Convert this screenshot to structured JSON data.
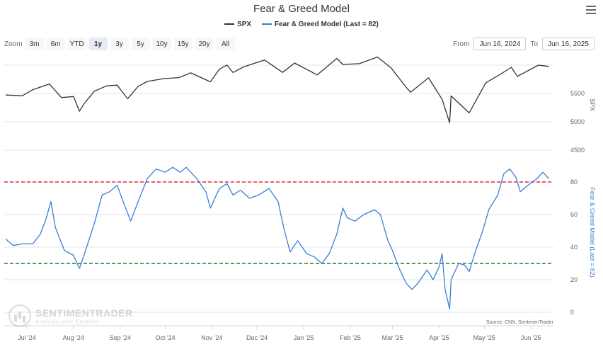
{
  "title": "Fear & Greed Model",
  "legend": {
    "spx_label": "SPX",
    "fg_label": "Fear & Greed Model (Last = 82)"
  },
  "zoom": {
    "label": "Zoom",
    "buttons": [
      "3m",
      "6m",
      "YTD",
      "1y",
      "3y",
      "5y",
      "10y",
      "15y",
      "20y",
      "All"
    ],
    "active": "1y"
  },
  "range": {
    "from_label": "From",
    "from_value": "Jun 16, 2024",
    "to_label": "To",
    "to_value": "Jun 16, 2025"
  },
  "source": "Source: CNN, SentimenTrader",
  "watermark": {
    "name": "SENTIMENTRADER",
    "tagline": "Analysis over Emotion"
  },
  "colors": {
    "spx": "#333333",
    "fg": "#3a7fd5",
    "upper_line": "#e03030",
    "lower_line": "#208020"
  },
  "chart_data": {
    "type": "line",
    "x_ticks": [
      "Jul '24",
      "Aug '24",
      "Sep '24",
      "Oct '24",
      "Nov '24",
      "Dec '24",
      "Jan '25",
      "Feb '25",
      "Mar '25",
      "Apr '25",
      "May '25",
      "Jun '25"
    ],
    "x_range": [
      "2024-06-16",
      "2025-06-16"
    ],
    "panels": [
      {
        "name": "SPX",
        "ylabel": "SPX",
        "ylim": [
          4500,
          6100
        ],
        "y_ticks": [
          4500,
          5000,
          5500
        ],
        "series": [
          {
            "name": "SPX",
            "points": [
              [
                "2024-06-17",
                5473
              ],
              [
                "2024-06-28",
                5460
              ],
              [
                "2024-07-05",
                5567
              ],
              [
                "2024-07-16",
                5667
              ],
              [
                "2024-07-24",
                5427
              ],
              [
                "2024-08-01",
                5446
              ],
              [
                "2024-08-05",
                5186
              ],
              [
                "2024-08-08",
                5319
              ],
              [
                "2024-08-15",
                5543
              ],
              [
                "2024-08-23",
                5634
              ],
              [
                "2024-08-30",
                5648
              ],
              [
                "2024-09-06",
                5408
              ],
              [
                "2024-09-13",
                5626
              ],
              [
                "2024-09-19",
                5713
              ],
              [
                "2024-09-30",
                5762
              ],
              [
                "2024-10-10",
                5780
              ],
              [
                "2024-10-18",
                5864
              ],
              [
                "2024-10-31",
                5705
              ],
              [
                "2024-11-06",
                5929
              ],
              [
                "2024-11-11",
                6001
              ],
              [
                "2024-11-15",
                5870
              ],
              [
                "2024-11-22",
                5969
              ],
              [
                "2024-12-06",
                6090
              ],
              [
                "2024-12-18",
                5872
              ],
              [
                "2024-12-26",
                6037
              ],
              [
                "2025-01-10",
                5827
              ],
              [
                "2025-01-23",
                6119
              ],
              [
                "2025-01-27",
                6012
              ],
              [
                "2025-02-07",
                6026
              ],
              [
                "2025-02-19",
                6144
              ],
              [
                "2025-02-28",
                5954
              ],
              [
                "2025-03-10",
                5614
              ],
              [
                "2025-03-13",
                5521
              ],
              [
                "2025-03-25",
                5776
              ],
              [
                "2025-04-03",
                5396
              ],
              [
                "2025-04-08",
                4982
              ],
              [
                "2025-04-09",
                5457
              ],
              [
                "2025-04-21",
                5158
              ],
              [
                "2025-05-02",
                5686
              ],
              [
                "2025-05-12",
                5844
              ],
              [
                "2025-05-19",
                5963
              ],
              [
                "2025-05-23",
                5802
              ],
              [
                "2025-06-06",
                6000
              ],
              [
                "2025-06-13",
                5977
              ]
            ]
          }
        ]
      },
      {
        "name": "Fear & Greed Model",
        "ylabel": "Fear & Greed Model (Last = 82)",
        "ylim": [
          -5,
          95
        ],
        "y_ticks": [
          0,
          20,
          40,
          60,
          80
        ],
        "reference_lines": [
          {
            "value": 80,
            "color": "#e03030"
          },
          {
            "value": 30,
            "color": "#208020"
          }
        ],
        "series": [
          {
            "name": "Fear & Greed Model",
            "points": [
              [
                "2024-06-17",
                45
              ],
              [
                "2024-06-22",
                41
              ],
              [
                "2024-06-28",
                42
              ],
              [
                "2024-07-05",
                42
              ],
              [
                "2024-07-10",
                48
              ],
              [
                "2024-07-14",
                58
              ],
              [
                "2024-07-17",
                68
              ],
              [
                "2024-07-20",
                52
              ],
              [
                "2024-07-26",
                38
              ],
              [
                "2024-08-01",
                35
              ],
              [
                "2024-08-05",
                27
              ],
              [
                "2024-08-08",
                35
              ],
              [
                "2024-08-15",
                55
              ],
              [
                "2024-08-20",
                72
              ],
              [
                "2024-08-25",
                74
              ],
              [
                "2024-08-30",
                78
              ],
              [
                "2024-09-03",
                68
              ],
              [
                "2024-09-08",
                56
              ],
              [
                "2024-09-13",
                68
              ],
              [
                "2024-09-19",
                82
              ],
              [
                "2024-09-25",
                88
              ],
              [
                "2024-10-01",
                86
              ],
              [
                "2024-10-06",
                89
              ],
              [
                "2024-10-11",
                86
              ],
              [
                "2024-10-15",
                89
              ],
              [
                "2024-10-22",
                82
              ],
              [
                "2024-10-28",
                74
              ],
              [
                "2024-10-31",
                64
              ],
              [
                "2024-11-06",
                76
              ],
              [
                "2024-11-11",
                79
              ],
              [
                "2024-11-15",
                72
              ],
              [
                "2024-11-20",
                75
              ],
              [
                "2024-11-26",
                70
              ],
              [
                "2024-12-02",
                72
              ],
              [
                "2024-12-09",
                76
              ],
              [
                "2024-12-15",
                68
              ],
              [
                "2024-12-19",
                51
              ],
              [
                "2024-12-23",
                37
              ],
              [
                "2024-12-28",
                44
              ],
              [
                "2025-01-03",
                36
              ],
              [
                "2025-01-08",
                34
              ],
              [
                "2025-01-13",
                30
              ],
              [
                "2025-01-18",
                36
              ],
              [
                "2025-01-23",
                48
              ],
              [
                "2025-01-27",
                64
              ],
              [
                "2025-01-30",
                58
              ],
              [
                "2025-02-04",
                56
              ],
              [
                "2025-02-10",
                60
              ],
              [
                "2025-02-17",
                63
              ],
              [
                "2025-02-21",
                60
              ],
              [
                "2025-02-26",
                44
              ],
              [
                "2025-03-01",
                38
              ],
              [
                "2025-03-05",
                28
              ],
              [
                "2025-03-10",
                18
              ],
              [
                "2025-03-14",
                14
              ],
              [
                "2025-03-18",
                18
              ],
              [
                "2025-03-24",
                26
              ],
              [
                "2025-03-28",
                20
              ],
              [
                "2025-04-01",
                28
              ],
              [
                "2025-04-03",
                36
              ],
              [
                "2025-04-05",
                14
              ],
              [
                "2025-04-08",
                2
              ],
              [
                "2025-04-09",
                20
              ],
              [
                "2025-04-14",
                30
              ],
              [
                "2025-04-18",
                29
              ],
              [
                "2025-04-21",
                25
              ],
              [
                "2025-04-25",
                37
              ],
              [
                "2025-04-30",
                50
              ],
              [
                "2025-05-04",
                63
              ],
              [
                "2025-05-10",
                72
              ],
              [
                "2025-05-14",
                85
              ],
              [
                "2025-05-18",
                88
              ],
              [
                "2025-05-22",
                83
              ],
              [
                "2025-05-25",
                74
              ],
              [
                "2025-05-30",
                78
              ],
              [
                "2025-06-05",
                82
              ],
              [
                "2025-06-09",
                86
              ],
              [
                "2025-06-13",
                82
              ]
            ]
          }
        ]
      }
    ]
  }
}
